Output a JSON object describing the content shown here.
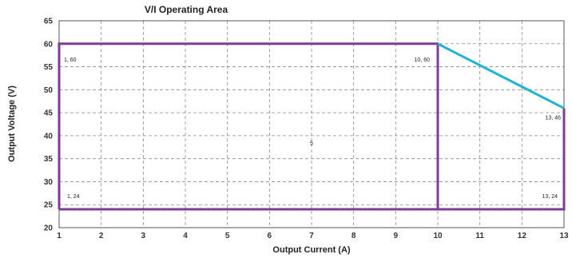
{
  "chart_data": {
    "type": "line",
    "title": "V/I Operating Area",
    "xlabel": "Output Current (A)",
    "ylabel": "Output Voltage (V)",
    "xlim": [
      1,
      13
    ],
    "ylim": [
      20,
      65
    ],
    "x_ticks": [
      1,
      2,
      3,
      4,
      5,
      6,
      7,
      8,
      9,
      10,
      11,
      12,
      13
    ],
    "y_ticks": [
      20,
      25,
      30,
      35,
      40,
      45,
      50,
      55,
      60,
      65
    ],
    "grid": true,
    "series": [
      {
        "color": "#7d3c98",
        "points": [
          [
            1,
            24
          ],
          [
            1,
            60
          ],
          [
            10,
            60
          ],
          [
            10,
            24
          ],
          [
            13,
            24
          ],
          [
            13,
            46
          ],
          [
            13,
            24
          ],
          [
            1,
            24
          ]
        ]
      },
      {
        "color": "#1fb3d6",
        "points": [
          [
            10,
            60
          ],
          [
            13,
            46
          ]
        ]
      }
    ],
    "annotations": [
      {
        "text": "1, 60",
        "x": 1,
        "y": 60
      },
      {
        "text": "10, 60",
        "x": 10,
        "y": 60
      },
      {
        "text": "13, 46",
        "x": 13,
        "y": 46
      },
      {
        "text": "5",
        "x": 7,
        "y": 38
      },
      {
        "text": "1, 24",
        "x": 1,
        "y": 24
      },
      {
        "text": "13, 24",
        "x": 13,
        "y": 24
      }
    ]
  }
}
